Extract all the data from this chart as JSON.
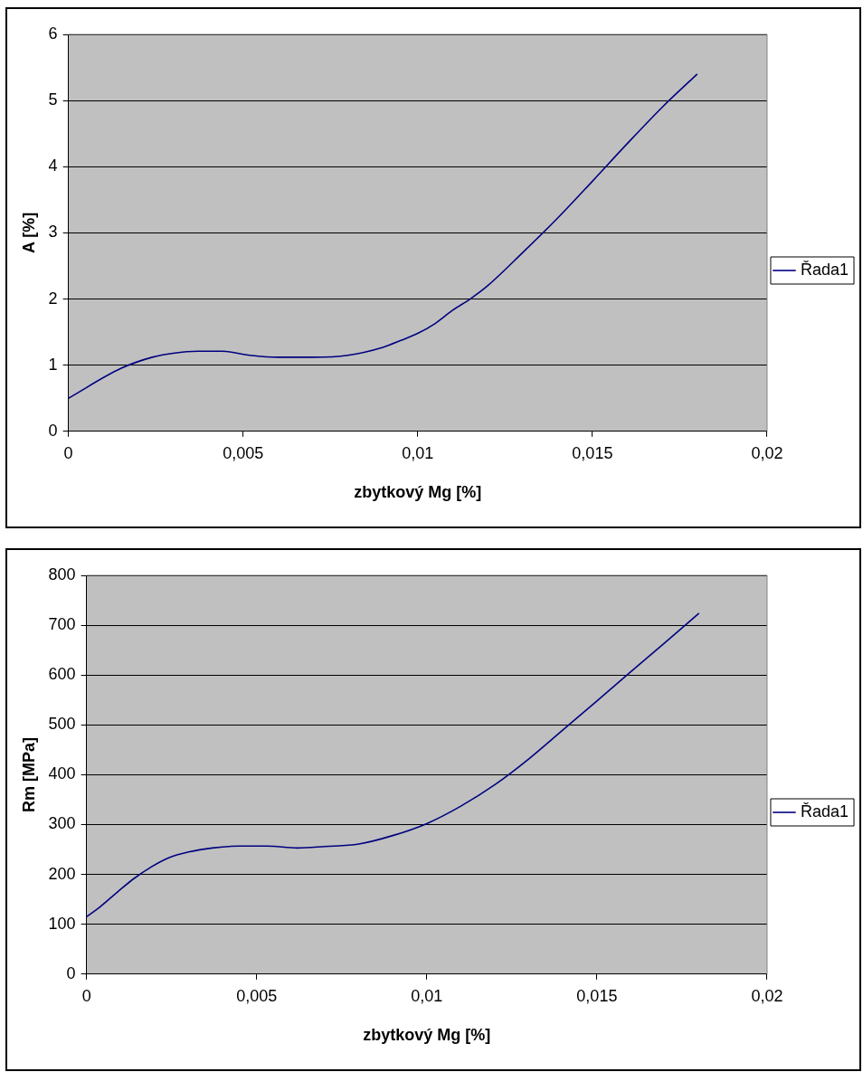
{
  "chart_data": [
    {
      "type": "line",
      "xlabel": "zbytkový Mg [%]",
      "ylabel": "A [%]",
      "x": [
        0,
        0.0015,
        0.0024,
        0.003,
        0.0037,
        0.0044,
        0.0052,
        0.006,
        0.007,
        0.008,
        0.009,
        0.0095,
        0.01,
        0.0105,
        0.011,
        0.0115,
        0.012,
        0.013,
        0.014,
        0.015,
        0.016,
        0.017,
        0.018
      ],
      "series": [
        {
          "name": "Řada1",
          "color": "#000080",
          "values": [
            0.5,
            0.95,
            1.12,
            1.18,
            1.21,
            1.21,
            1.15,
            1.12,
            1.12,
            1.15,
            1.27,
            1.37,
            1.48,
            1.63,
            1.83,
            2.0,
            2.2,
            2.7,
            3.22,
            3.78,
            4.35,
            4.9,
            5.4
          ]
        }
      ],
      "xlim": [
        0,
        0.02
      ],
      "xticks": [
        0,
        {
          "value": 0.005,
          "label": "0,005"
        },
        {
          "value": 0.01,
          "label": "0,01"
        },
        {
          "value": 0.015,
          "label": "0,015"
        },
        {
          "value": 0.02,
          "label": "0,02"
        }
      ],
      "ylim": [
        0,
        6
      ],
      "yticks": [
        0,
        1,
        2,
        3,
        4,
        5,
        6
      ],
      "grid": "y",
      "legend": "right",
      "marker": "none",
      "line_style": "solid"
    },
    {
      "type": "line",
      "xlabel": "zbytkový Mg [%]",
      "ylabel": "Rm [MPa]",
      "x": [
        0,
        0.0004,
        0.001,
        0.0014,
        0.0019,
        0.0024,
        0.003,
        0.0037,
        0.0045,
        0.0053,
        0.0062,
        0.007,
        0.008,
        0.009,
        0.01,
        0.011,
        0.012,
        0.013,
        0.014,
        0.015,
        0.016,
        0.017,
        0.018
      ],
      "series": [
        {
          "name": "Řada1",
          "color": "#000080",
          "values": [
            115,
            135,
            170,
            192,
            215,
            233,
            245,
            253,
            257,
            257,
            253,
            256,
            261,
            278,
            302,
            337,
            380,
            432,
            490,
            548,
            607,
            665,
            724
          ]
        }
      ],
      "xlim": [
        0,
        0.02
      ],
      "xticks": [
        0,
        {
          "value": 0.005,
          "label": "0,005"
        },
        {
          "value": 0.01,
          "label": "0,01"
        },
        {
          "value": 0.015,
          "label": "0,015"
        },
        {
          "value": 0.02,
          "label": "0,02"
        }
      ],
      "ylim": [
        0,
        800
      ],
      "yticks": [
        0,
        100,
        200,
        300,
        400,
        500,
        600,
        700,
        800
      ],
      "grid": "y",
      "legend": "right",
      "marker": "none",
      "line_style": "solid"
    }
  ]
}
